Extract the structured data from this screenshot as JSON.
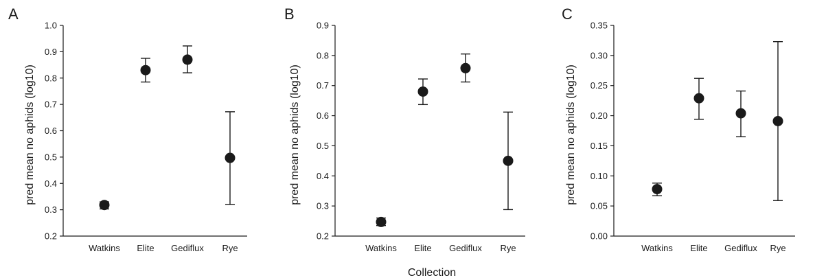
{
  "chart_data": [
    {
      "type": "scatter",
      "panel": "A",
      "categories": [
        "Watkins",
        "Elite",
        "Gediflux",
        "Rye"
      ],
      "values": [
        0.318,
        0.83,
        0.87,
        0.497
      ],
      "error_low": [
        0.303,
        0.785,
        0.82,
        0.32
      ],
      "error_high": [
        0.33,
        0.875,
        0.922,
        0.672
      ],
      "ylabel": "pred mean no aphids (log10)",
      "ylim": [
        0.2,
        1.0
      ],
      "yticks": [
        "0.2",
        "0.3",
        "0.4",
        "0.5",
        "0.6",
        "0.7",
        "0.8",
        "0.9",
        "1.0"
      ]
    },
    {
      "type": "scatter",
      "panel": "B",
      "categories": [
        "Watkins",
        "Elite",
        "Gediflux",
        "Rye"
      ],
      "values": [
        0.247,
        0.68,
        0.758,
        0.45
      ],
      "error_low": [
        0.235,
        0.637,
        0.712,
        0.288
      ],
      "error_high": [
        0.26,
        0.722,
        0.805,
        0.612
      ],
      "ylabel": "pred mean no aphids (log10)",
      "ylim": [
        0.2,
        0.9
      ],
      "yticks": [
        "0.2",
        "0.3",
        "0.4",
        "0.5",
        "0.6",
        "0.7",
        "0.8",
        "0.9"
      ]
    },
    {
      "type": "scatter",
      "panel": "C",
      "categories": [
        "Watkins",
        "Elite",
        "Gediflux",
        "Rye"
      ],
      "values": [
        0.078,
        0.229,
        0.204,
        0.191
      ],
      "error_low": [
        0.067,
        0.194,
        0.165,
        0.059
      ],
      "error_high": [
        0.088,
        0.262,
        0.241,
        0.323
      ],
      "ylabel": "pred mean no aphids (log10)",
      "ylim": [
        0.0,
        0.35
      ],
      "yticks": [
        "0.00",
        "0.05",
        "0.10",
        "0.15",
        "0.20",
        "0.25",
        "0.30",
        "0.35"
      ]
    }
  ],
  "xlabel": "Collection"
}
